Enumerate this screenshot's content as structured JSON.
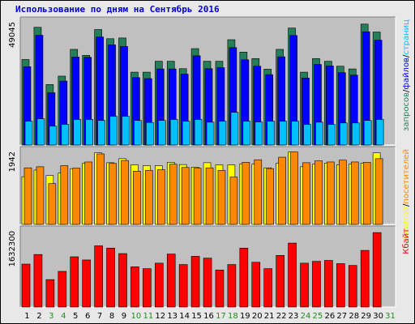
{
  "title": "Использование по дням на Сентябрь 2016",
  "colors": {
    "hits": "#237f5a",
    "files": "#0000ff",
    "pages": "#00c0ff",
    "visits": "#ffff00",
    "sites": "#ff8800",
    "kbytes": "#ff0000",
    "weekend_tick": "#228b22",
    "weekday_tick": "#000000",
    "panel_bg": "#c0c0c0"
  },
  "chart_data": [
    {
      "type": "bar",
      "panel": "hits-files-pages",
      "ymax_label": "49045",
      "ymax": 49045,
      "legend": [
        "запросов",
        "/",
        "файлов",
        "/",
        "страниц"
      ],
      "x": [
        1,
        2,
        3,
        4,
        5,
        6,
        7,
        8,
        9,
        10,
        11,
        12,
        13,
        14,
        15,
        16,
        17,
        18,
        19,
        20,
        21,
        22,
        23,
        24,
        25,
        26,
        27,
        28,
        29,
        30,
        31
      ],
      "series": [
        {
          "name": "запросов",
          "values": [
            34500,
            47500,
            24400,
            27800,
            38600,
            36200,
            46600,
            42900,
            43200,
            29400,
            29400,
            33800,
            33800,
            30800,
            38900,
            33800,
            33800,
            42500,
            37500,
            34900,
            30600,
            38600,
            47200,
            29400,
            34900,
            33800,
            31800,
            30700,
            48800,
            45600,
            0
          ]
        },
        {
          "name": "файлов",
          "values": [
            31600,
            44300,
            21100,
            25800,
            35500,
            35400,
            43600,
            40400,
            39800,
            27200,
            26800,
            30700,
            30700,
            28600,
            36000,
            30800,
            31200,
            39300,
            34400,
            31800,
            28400,
            35600,
            44200,
            27000,
            32500,
            31900,
            29200,
            28200,
            45700,
            42300,
            0
          ]
        },
        {
          "name": "страниц",
          "values": [
            9600,
            10600,
            7600,
            8300,
            10300,
            10300,
            9900,
            11600,
            11600,
            9900,
            9100,
            9900,
            10300,
            9600,
            10300,
            9200,
            9600,
            13200,
            9600,
            9300,
            9600,
            9600,
            9600,
            8300,
            9200,
            8300,
            8900,
            8900,
            9900,
            10300,
            0
          ]
        }
      ]
    },
    {
      "type": "bar",
      "panel": "visits-sites",
      "ymax_label": "1942",
      "ymax": 1942,
      "legend": [
        "визитов",
        "/",
        "посетителей"
      ],
      "x": [
        1,
        2,
        3,
        4,
        5,
        6,
        7,
        8,
        9,
        10,
        11,
        12,
        13,
        14,
        15,
        16,
        17,
        18,
        19,
        20,
        21,
        22,
        23,
        24,
        25,
        26,
        27,
        28,
        29,
        30,
        31
      ],
      "series": [
        {
          "name": "визитов",
          "values": [
            1300,
            1480,
            1330,
            1400,
            1520,
            1660,
            1950,
            1680,
            1790,
            1620,
            1600,
            1600,
            1690,
            1630,
            1560,
            1680,
            1620,
            1620,
            1650,
            1640,
            1540,
            1670,
            1970,
            1570,
            1640,
            1670,
            1620,
            1640,
            1670,
            1950,
            0
          ]
        },
        {
          "name": "посетителей",
          "values": [
            1540,
            1570,
            1110,
            1600,
            1530,
            1700,
            1920,
            1660,
            1740,
            1450,
            1470,
            1490,
            1640,
            1550,
            1530,
            1540,
            1470,
            1290,
            1690,
            1760,
            1520,
            1830,
            1970,
            1680,
            1730,
            1700,
            1750,
            1700,
            1690,
            1790,
            0
          ]
        }
      ]
    },
    {
      "type": "bar",
      "panel": "kbytes",
      "ymax_label": "1632300",
      "ymax": 1632300,
      "legend": [
        "Кбайт"
      ],
      "x": [
        1,
        2,
        3,
        4,
        5,
        6,
        7,
        8,
        9,
        10,
        11,
        12,
        13,
        14,
        15,
        16,
        17,
        18,
        19,
        20,
        21,
        22,
        23,
        24,
        25,
        26,
        27,
        28,
        29,
        30,
        31
      ],
      "series": [
        {
          "name": "Кбайт",
          "values": [
            940000,
            1150000,
            600000,
            780000,
            1100000,
            1030000,
            1340000,
            1290000,
            1170000,
            880000,
            840000,
            960000,
            1160000,
            930000,
            1110000,
            1070000,
            810000,
            930000,
            1290000,
            980000,
            840000,
            1130000,
            1400000,
            960000,
            1000000,
            1020000,
            950000,
            910000,
            1240000,
            1630000,
            0
          ]
        }
      ]
    }
  ],
  "x_axis": {
    "labels": [
      "1",
      "2",
      "3",
      "4",
      "5",
      "6",
      "7",
      "8",
      "9",
      "10",
      "11",
      "12",
      "13",
      "14",
      "15",
      "16",
      "17",
      "18",
      "19",
      "20",
      "21",
      "22",
      "23",
      "24",
      "25",
      "26",
      "27",
      "28",
      "29",
      "30",
      "31"
    ],
    "weekend": [
      false,
      false,
      true,
      true,
      false,
      false,
      false,
      false,
      false,
      true,
      true,
      false,
      false,
      false,
      false,
      false,
      true,
      true,
      false,
      false,
      false,
      false,
      false,
      true,
      true,
      false,
      false,
      false,
      false,
      false,
      true
    ]
  }
}
